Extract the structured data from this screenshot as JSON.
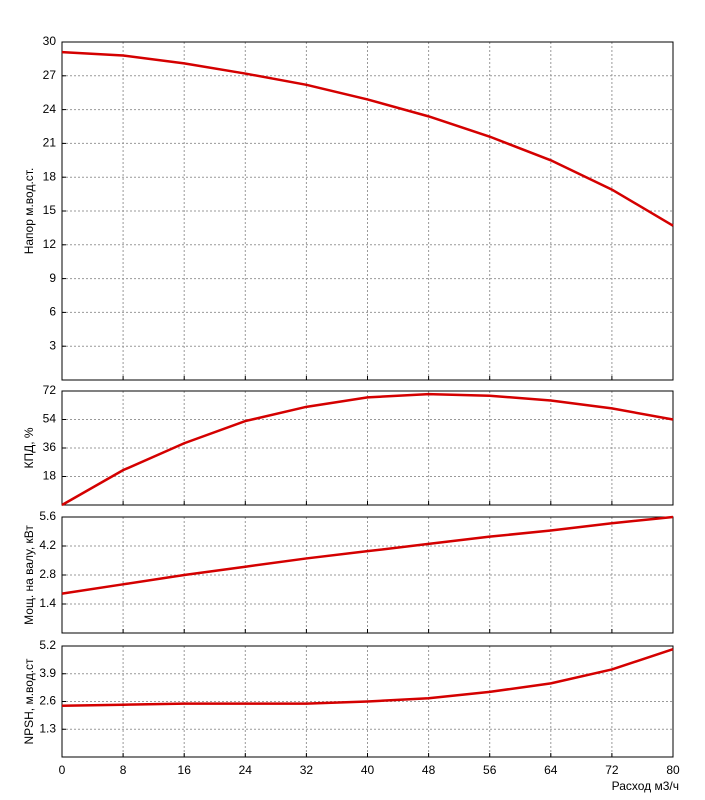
{
  "chart_data": [
    {
      "type": "line",
      "y_label": "Напор м.вод.ст.",
      "color": "#d40000",
      "x": [
        0,
        8,
        16,
        24,
        32,
        40,
        48,
        56,
        64,
        72,
        80
      ],
      "values": [
        29.1,
        28.8,
        28.1,
        27.2,
        26.2,
        24.9,
        23.4,
        21.6,
        19.5,
        16.9,
        13.7
      ],
      "xlim": [
        0,
        80
      ],
      "xticks": [
        0,
        8,
        16,
        24,
        32,
        40,
        48,
        56,
        64,
        72,
        80
      ],
      "ylim": [
        0,
        30
      ],
      "yticks": [
        3,
        6,
        9,
        12,
        15,
        18,
        21,
        24,
        27,
        30
      ],
      "grid": true
    },
    {
      "type": "line",
      "y_label": "КПД, %",
      "color": "#d40000",
      "x": [
        0,
        8,
        16,
        24,
        32,
        40,
        48,
        56,
        64,
        72,
        80
      ],
      "values": [
        0,
        22,
        39,
        53,
        62,
        68,
        70,
        69,
        66,
        61,
        54
      ],
      "xlim": [
        0,
        80
      ],
      "xticks": [
        0,
        8,
        16,
        24,
        32,
        40,
        48,
        56,
        64,
        72,
        80
      ],
      "ylim": [
        0,
        72
      ],
      "yticks": [
        18,
        36,
        54,
        72
      ],
      "grid": true
    },
    {
      "type": "line",
      "y_label": "Мощ. на валу, кВт",
      "color": "#d40000",
      "x": [
        0,
        8,
        16,
        24,
        32,
        40,
        48,
        56,
        64,
        72,
        80
      ],
      "values": [
        1.9,
        2.35,
        2.8,
        3.2,
        3.6,
        3.95,
        4.3,
        4.65,
        4.95,
        5.3,
        5.6
      ],
      "xlim": [
        0,
        80
      ],
      "xticks": [
        0,
        8,
        16,
        24,
        32,
        40,
        48,
        56,
        64,
        72,
        80
      ],
      "ylim": [
        0,
        5.6
      ],
      "yticks": [
        1.4,
        2.8,
        4.2,
        5.6
      ],
      "grid": true
    },
    {
      "type": "line",
      "y_label": "NPSH, м.вод.ст",
      "x_label": "Расход м3/ч",
      "color": "#d40000",
      "x": [
        0,
        8,
        16,
        24,
        32,
        40,
        48,
        56,
        64,
        72,
        80
      ],
      "values": [
        2.4,
        2.45,
        2.5,
        2.5,
        2.5,
        2.6,
        2.75,
        3.05,
        3.45,
        4.1,
        5.05
      ],
      "xlim": [
        0,
        80
      ],
      "xticks": [
        0,
        8,
        16,
        24,
        32,
        40,
        48,
        56,
        64,
        72,
        80
      ],
      "ylim": [
        0,
        5.2
      ],
      "yticks": [
        1.3,
        2.6,
        3.9,
        5.2
      ],
      "grid": true
    }
  ]
}
